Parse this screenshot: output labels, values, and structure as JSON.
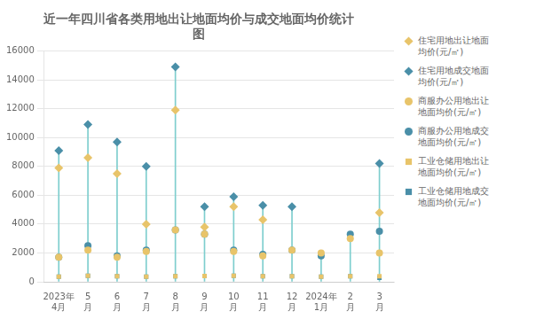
{
  "chart_data": {
    "type": "scatter",
    "title": "近一年四川省各类用地出让地面均价与成交地面均价统计\n图",
    "categories": [
      "2023年\n4月",
      "5\n月",
      "6\n月",
      "7\n月",
      "8\n月",
      "9\n月",
      "10\n月",
      "11\n月",
      "12\n月",
      "2024年\n1月",
      "2\n月",
      "3\n月"
    ],
    "series": [
      {
        "name": "住宅用地出让地面\n均价(元/㎡)",
        "color": "#E8C46A",
        "marker": "diamond",
        "values": [
          7900,
          8600,
          7500,
          4000,
          11900,
          3800,
          5200,
          4300,
          null,
          null,
          null,
          4800
        ]
      },
      {
        "name": "住宅用地成交地面\n均价(元/㎡)",
        "color": "#4A8FA8",
        "marker": "diamond",
        "values": [
          9100,
          10900,
          9700,
          8000,
          14900,
          5200,
          5900,
          5300,
          5200,
          null,
          null,
          8200
        ]
      },
      {
        "name": "商服办公用地出让\n地面均价(元/㎡)",
        "color": "#E8C46A",
        "marker": "circle",
        "values": [
          1700,
          2200,
          1700,
          2100,
          3600,
          3300,
          2100,
          1800,
          2200,
          2000,
          3000,
          2000
        ]
      },
      {
        "name": "商服办公用地成交\n地面均价(元/㎡)",
        "color": "#4A8FA8",
        "marker": "circle",
        "values": [
          1700,
          2500,
          1800,
          2200,
          3600,
          3300,
          2200,
          1900,
          2200,
          1800,
          3300,
          3500
        ]
      },
      {
        "name": "工业仓储用地出让\n地面均价(元/㎡)",
        "color": "#E8C46A",
        "marker": "square",
        "values": [
          350,
          420,
          380,
          350,
          380,
          400,
          420,
          380,
          380,
          350,
          380,
          380
        ]
      },
      {
        "name": "工业仓储用地成交\n地面均价(元/㎡)",
        "color": "#4A8FA8",
        "marker": "square",
        "values": [
          350,
          420,
          380,
          350,
          380,
          400,
          420,
          380,
          380,
          350,
          380,
          280
        ]
      }
    ],
    "stems": {
      "color": "#7ECECE",
      "values": [
        9100,
        10900,
        9700,
        8000,
        14900,
        5200,
        5900,
        5300,
        5200,
        2000,
        3300,
        8200
      ]
    },
    "ylim": [
      0,
      16000
    ],
    "yticks": [
      0,
      2000,
      4000,
      6000,
      8000,
      10000,
      12000,
      14000,
      16000
    ],
    "grid": true,
    "legend": "right"
  }
}
